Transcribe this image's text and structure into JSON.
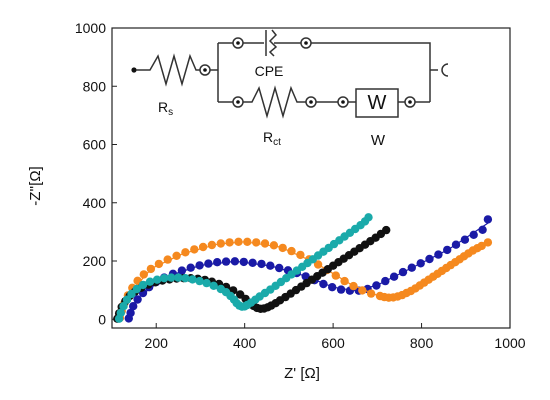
{
  "chart_data": {
    "type": "scatter",
    "xlabel": "Z' [Ω]",
    "ylabel": "-Z''[Ω]",
    "xlim": [
      100,
      1000
    ],
    "ylim": [
      -30,
      1000
    ],
    "x_ticks": [
      "200",
      "400",
      "600",
      "800",
      "1000"
    ],
    "y_ticks": [
      "0",
      "200",
      "400",
      "600",
      "800",
      "1000"
    ],
    "series": [
      {
        "color": "#1a1aa6",
        "points": [
          [
            138,
            3
          ],
          [
            142,
            22
          ],
          [
            148,
            45
          ],
          [
            158,
            68
          ],
          [
            170,
            90
          ],
          [
            184,
            110
          ],
          [
            200,
            128
          ],
          [
            218,
            143
          ],
          [
            238,
            156
          ],
          [
            258,
            167
          ],
          [
            278,
            177
          ],
          [
            298,
            185
          ],
          [
            318,
            191
          ],
          [
            338,
            196
          ],
          [
            358,
            198
          ],
          [
            378,
            199
          ],
          [
            398,
            197
          ],
          [
            418,
            194
          ],
          [
            438,
            190
          ],
          [
            458,
            184
          ],
          [
            478,
            176
          ],
          [
            498,
            168
          ],
          [
            518,
            159
          ],
          [
            538,
            147
          ],
          [
            558,
            134
          ],
          [
            578,
            121
          ],
          [
            598,
            110
          ],
          [
            618,
            102
          ],
          [
            638,
            98
          ],
          [
            658,
            98
          ],
          [
            678,
            104
          ],
          [
            698,
            116
          ],
          [
            718,
            131
          ],
          [
            738,
            146
          ],
          [
            758,
            162
          ],
          [
            778,
            177
          ],
          [
            798,
            192
          ],
          [
            818,
            207
          ],
          [
            838,
            222
          ],
          [
            858,
            238
          ],
          [
            878,
            256
          ],
          [
            898,
            273
          ],
          [
            918,
            290
          ],
          [
            938,
            307
          ],
          [
            950,
            343
          ]
        ],
        "fit": [
          [
            130,
            0
          ],
          [
            160,
            75
          ],
          [
            220,
            145
          ],
          [
            300,
            185
          ],
          [
            380,
            199
          ],
          [
            460,
            183
          ],
          [
            540,
            147
          ],
          [
            600,
            110
          ],
          [
            650,
            98
          ],
          [
            700,
            117
          ],
          [
            780,
            178
          ],
          [
            860,
            239
          ],
          [
            950,
            330
          ]
        ]
      },
      {
        "color": "#f5891f",
        "points": [
          [
            118,
            5
          ],
          [
            122,
            28
          ],
          [
            128,
            55
          ],
          [
            136,
            82
          ],
          [
            146,
            108
          ],
          [
            158,
            132
          ],
          [
            172,
            154
          ],
          [
            188,
            173
          ],
          [
            206,
            190
          ],
          [
            226,
            205
          ],
          [
            246,
            218
          ],
          [
            266,
            230
          ],
          [
            286,
            240
          ],
          [
            306,
            248
          ],
          [
            326,
            255
          ],
          [
            346,
            260
          ],
          [
            366,
            264
          ],
          [
            386,
            266
          ],
          [
            406,
            266
          ],
          [
            426,
            264
          ],
          [
            446,
            260
          ],
          [
            466,
            254
          ],
          [
            486,
            245
          ],
          [
            506,
            234
          ],
          [
            526,
            221
          ],
          [
            546,
            206
          ],
          [
            566,
            188
          ],
          [
            586,
            169
          ],
          [
            606,
            150
          ],
          [
            626,
            131
          ],
          [
            646,
            114
          ],
          [
            666,
            99
          ],
          [
            686,
            88
          ],
          [
            706,
            80
          ],
          [
            716,
            76
          ],
          [
            726,
            74
          ],
          [
            736,
            75
          ],
          [
            746,
            78
          ],
          [
            756,
            83
          ],
          [
            766,
            90
          ],
          [
            776,
            97
          ],
          [
            786,
            106
          ],
          [
            796,
            116
          ],
          [
            806,
            126
          ],
          [
            816,
            136
          ],
          [
            826,
            146
          ],
          [
            836,
            156
          ],
          [
            846,
            166
          ],
          [
            856,
            176
          ],
          [
            866,
            186
          ],
          [
            876,
            196
          ],
          [
            886,
            206
          ],
          [
            896,
            216
          ],
          [
            906,
            226
          ],
          [
            916,
            236
          ],
          [
            926,
            244
          ],
          [
            936,
            252
          ],
          [
            950,
            264
          ]
        ],
        "fit": [
          [
            115,
            0
          ],
          [
            140,
            90
          ],
          [
            190,
            175
          ],
          [
            260,
            225
          ],
          [
            340,
            258
          ],
          [
            400,
            266
          ],
          [
            480,
            248
          ],
          [
            560,
            194
          ],
          [
            640,
            120
          ],
          [
            700,
            82
          ],
          [
            740,
            76
          ],
          [
            800,
            120
          ],
          [
            880,
            200
          ],
          [
            950,
            264
          ]
        ]
      },
      {
        "color": "#111111",
        "points": [
          [
            112,
            2
          ],
          [
            116,
            20
          ],
          [
            122,
            42
          ],
          [
            130,
            62
          ],
          [
            140,
            80
          ],
          [
            152,
            95
          ],
          [
            166,
            108
          ],
          [
            182,
            119
          ],
          [
            198,
            127
          ],
          [
            214,
            133
          ],
          [
            230,
            137
          ],
          [
            246,
            140
          ],
          [
            262,
            141
          ],
          [
            278,
            141
          ],
          [
            294,
            139
          ],
          [
            310,
            135
          ],
          [
            326,
            129
          ],
          [
            342,
            121
          ],
          [
            358,
            111
          ],
          [
            374,
            99
          ],
          [
            390,
            85
          ],
          [
            402,
            70
          ],
          [
            412,
            57
          ],
          [
            420,
            46
          ],
          [
            428,
            39
          ],
          [
            436,
            36
          ],
          [
            444,
            37
          ],
          [
            452,
            41
          ],
          [
            460,
            47
          ],
          [
            470,
            55
          ],
          [
            480,
            65
          ],
          [
            492,
            76
          ],
          [
            504,
            88
          ],
          [
            516,
            100
          ],
          [
            528,
            112
          ],
          [
            540,
            124
          ],
          [
            552,
            136
          ],
          [
            564,
            148
          ],
          [
            576,
            160
          ],
          [
            588,
            172
          ],
          [
            600,
            184
          ],
          [
            612,
            196
          ],
          [
            624,
            208
          ],
          [
            636,
            220
          ],
          [
            648,
            232
          ],
          [
            660,
            244
          ],
          [
            672,
            256
          ],
          [
            684,
            268
          ],
          [
            696,
            280
          ],
          [
            708,
            293
          ],
          [
            720,
            306
          ]
        ],
        "fit": [
          [
            110,
            0
          ],
          [
            130,
            60
          ],
          [
            180,
            118
          ],
          [
            260,
            141
          ],
          [
            330,
            127
          ],
          [
            390,
            86
          ],
          [
            430,
            38
          ],
          [
            470,
            55
          ],
          [
            560,
            144
          ],
          [
            650,
            234
          ],
          [
            720,
            306
          ]
        ]
      },
      {
        "color": "#1aaaaa",
        "points": [
          [
            116,
            2
          ],
          [
            120,
            22
          ],
          [
            126,
            45
          ],
          [
            134,
            67
          ],
          [
            144,
            87
          ],
          [
            156,
            104
          ],
          [
            170,
            118
          ],
          [
            186,
            129
          ],
          [
            202,
            136
          ],
          [
            218,
            141
          ],
          [
            234,
            143
          ],
          [
            250,
            143
          ],
          [
            266,
            141
          ],
          [
            282,
            137
          ],
          [
            298,
            131
          ],
          [
            314,
            124
          ],
          [
            330,
            115
          ],
          [
            346,
            104
          ],
          [
            358,
            93
          ],
          [
            368,
            80
          ],
          [
            376,
            67
          ],
          [
            382,
            55
          ],
          [
            388,
            47
          ],
          [
            394,
            43
          ],
          [
            400,
            44
          ],
          [
            406,
            49
          ],
          [
            414,
            57
          ],
          [
            424,
            67
          ],
          [
            434,
            78
          ],
          [
            446,
            90
          ],
          [
            458,
            102
          ],
          [
            470,
            115
          ],
          [
            482,
            128
          ],
          [
            494,
            141
          ],
          [
            506,
            154
          ],
          [
            518,
            167
          ],
          [
            530,
            180
          ],
          [
            542,
            193
          ],
          [
            554,
            206
          ],
          [
            566,
            219
          ],
          [
            578,
            232
          ],
          [
            590,
            245
          ],
          [
            602,
            258
          ],
          [
            614,
            271
          ],
          [
            626,
            284
          ],
          [
            638,
            297
          ],
          [
            650,
            310
          ],
          [
            662,
            323
          ],
          [
            672,
            336
          ],
          [
            680,
            350
          ]
        ],
        "fit": [
          [
            114,
            0
          ],
          [
            140,
            80
          ],
          [
            190,
            132
          ],
          [
            250,
            143
          ],
          [
            320,
            120
          ],
          [
            370,
            76
          ],
          [
            395,
            43
          ],
          [
            440,
            84
          ],
          [
            520,
            169
          ],
          [
            600,
            256
          ],
          [
            680,
            350
          ]
        ]
      }
    ]
  },
  "circuit": {
    "labels": {
      "rs_main": "R",
      "rs_sub": "s",
      "cpe": "CPE",
      "rct_main": "R",
      "rct_sub": "ct",
      "w_box": "W",
      "w_label": "W"
    }
  }
}
